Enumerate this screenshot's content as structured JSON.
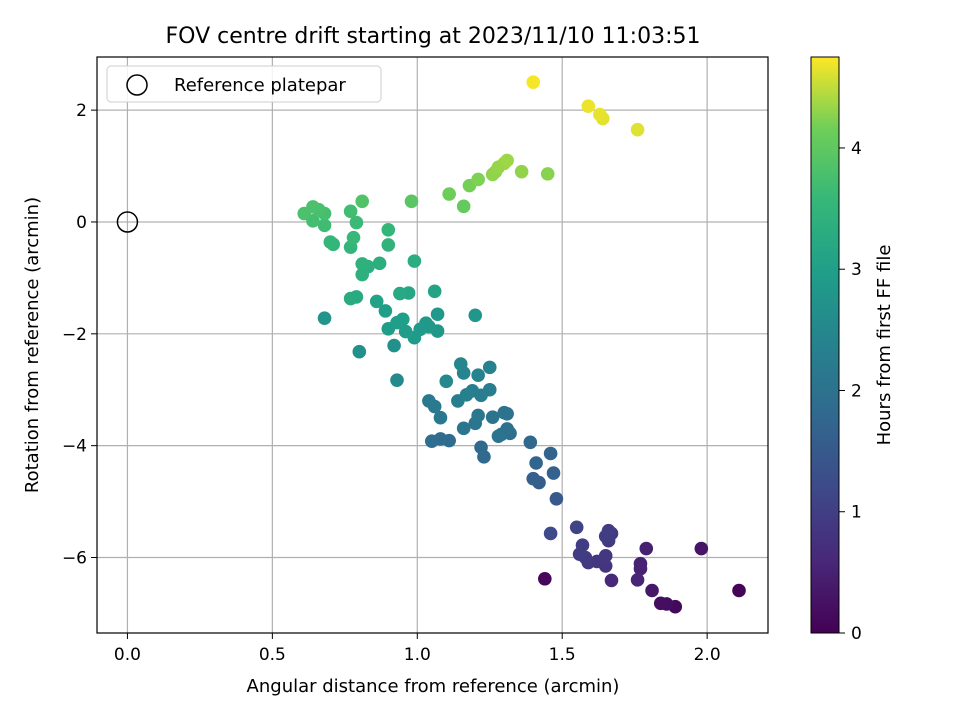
{
  "chart_data": {
    "type": "scatter",
    "title": "FOV centre drift starting at 2023/11/10 11:03:51",
    "xlabel": "Angular distance from reference (arcmin)",
    "ylabel": "Rotation from reference (arcmin)",
    "xlim": [
      -0.105,
      2.21
    ],
    "ylim": [
      -7.35,
      2.95
    ],
    "xticks": [
      0.0,
      0.5,
      1.0,
      1.5,
      2.0
    ],
    "xtick_labels": [
      "0.0",
      "0.5",
      "1.0",
      "1.5",
      "2.0"
    ],
    "yticks": [
      -6,
      -4,
      -2,
      0,
      2
    ],
    "ytick_labels": [
      "−6",
      "−4",
      "−2",
      "0",
      "2"
    ],
    "grid": true,
    "legend": {
      "position": "top-left",
      "label": "Reference platepar"
    },
    "reference_point": {
      "x": 0.0,
      "y": 0.0
    },
    "colorbar": {
      "label": "Hours from first FF file",
      "colormap": "viridis",
      "range": [
        0,
        4.75
      ],
      "ticks": [
        0,
        1,
        2,
        3,
        4
      ],
      "tick_labels": [
        "0",
        "1",
        "2",
        "3",
        "4"
      ]
    },
    "points": [
      {
        "x": 1.4,
        "y": 2.5,
        "hours": 4.72
      },
      {
        "x": 1.59,
        "y": 2.07,
        "hours": 4.68
      },
      {
        "x": 1.63,
        "y": 1.92,
        "hours": 4.66
      },
      {
        "x": 1.64,
        "y": 1.85,
        "hours": 4.64
      },
      {
        "x": 1.76,
        "y": 1.65,
        "hours": 4.62
      },
      {
        "x": 1.31,
        "y": 1.1,
        "hours": 4.35
      },
      {
        "x": 1.3,
        "y": 1.05,
        "hours": 4.33
      },
      {
        "x": 1.28,
        "y": 0.98,
        "hours": 4.32
      },
      {
        "x": 1.27,
        "y": 0.9,
        "hours": 4.3
      },
      {
        "x": 1.26,
        "y": 0.85,
        "hours": 4.29
      },
      {
        "x": 1.36,
        "y": 0.9,
        "hours": 4.3
      },
      {
        "x": 1.45,
        "y": 0.86,
        "hours": 4.26
      },
      {
        "x": 1.21,
        "y": 0.76,
        "hours": 4.22
      },
      {
        "x": 1.18,
        "y": 0.65,
        "hours": 4.18
      },
      {
        "x": 1.11,
        "y": 0.5,
        "hours": 4.14
      },
      {
        "x": 1.16,
        "y": 0.28,
        "hours": 4.05
      },
      {
        "x": 0.98,
        "y": 0.37,
        "hours": 3.95
      },
      {
        "x": 0.81,
        "y": 0.37,
        "hours": 3.85
      },
      {
        "x": 0.61,
        "y": 0.15,
        "hours": 3.8
      },
      {
        "x": 0.64,
        "y": 0.27,
        "hours": 3.8
      },
      {
        "x": 0.66,
        "y": 0.22,
        "hours": 3.78
      },
      {
        "x": 0.68,
        "y": 0.15,
        "hours": 3.75
      },
      {
        "x": 0.64,
        "y": 0.02,
        "hours": 3.72
      },
      {
        "x": 0.68,
        "y": -0.06,
        "hours": 3.68
      },
      {
        "x": 0.77,
        "y": 0.19,
        "hours": 3.7
      },
      {
        "x": 0.79,
        "y": -0.01,
        "hours": 3.62
      },
      {
        "x": 0.78,
        "y": -0.28,
        "hours": 3.58
      },
      {
        "x": 0.7,
        "y": -0.36,
        "hours": 3.55
      },
      {
        "x": 0.71,
        "y": -0.4,
        "hours": 3.52
      },
      {
        "x": 0.77,
        "y": -0.45,
        "hours": 3.5
      },
      {
        "x": 0.9,
        "y": -0.14,
        "hours": 3.55
      },
      {
        "x": 0.9,
        "y": -0.41,
        "hours": 3.45
      },
      {
        "x": 0.81,
        "y": -0.75,
        "hours": 3.4
      },
      {
        "x": 0.81,
        "y": -0.94,
        "hours": 3.38
      },
      {
        "x": 0.83,
        "y": -0.8,
        "hours": 3.36
      },
      {
        "x": 0.87,
        "y": -0.74,
        "hours": 3.35
      },
      {
        "x": 0.99,
        "y": -0.7,
        "hours": 3.32
      },
      {
        "x": 0.77,
        "y": -1.37,
        "hours": 3.25
      },
      {
        "x": 0.79,
        "y": -1.34,
        "hours": 3.22
      },
      {
        "x": 0.94,
        "y": -1.28,
        "hours": 3.2
      },
      {
        "x": 0.97,
        "y": -1.27,
        "hours": 3.15
      },
      {
        "x": 1.06,
        "y": -1.24,
        "hours": 3.12
      },
      {
        "x": 0.86,
        "y": -1.42,
        "hours": 3.08
      },
      {
        "x": 0.89,
        "y": -1.59,
        "hours": 3.0
      },
      {
        "x": 0.93,
        "y": -1.8,
        "hours": 2.98
      },
      {
        "x": 0.95,
        "y": -1.74,
        "hours": 2.96
      },
      {
        "x": 0.9,
        "y": -1.91,
        "hours": 2.94
      },
      {
        "x": 0.96,
        "y": -1.96,
        "hours": 2.92
      },
      {
        "x": 0.99,
        "y": -2.07,
        "hours": 2.9
      },
      {
        "x": 1.01,
        "y": -1.92,
        "hours": 2.88
      },
      {
        "x": 1.04,
        "y": -1.87,
        "hours": 2.86
      },
      {
        "x": 1.03,
        "y": -1.81,
        "hours": 2.85
      },
      {
        "x": 1.07,
        "y": -1.65,
        "hours": 2.84
      },
      {
        "x": 1.07,
        "y": -1.95,
        "hours": 2.82
      },
      {
        "x": 1.2,
        "y": -1.67,
        "hours": 2.8
      },
      {
        "x": 0.68,
        "y": -1.72,
        "hours": 2.78
      },
      {
        "x": 0.8,
        "y": -2.32,
        "hours": 2.7
      },
      {
        "x": 0.92,
        "y": -2.21,
        "hours": 2.68
      },
      {
        "x": 0.93,
        "y": -2.83,
        "hours": 2.55
      },
      {
        "x": 1.1,
        "y": -2.85,
        "hours": 2.5
      },
      {
        "x": 1.15,
        "y": -2.54,
        "hours": 2.45
      },
      {
        "x": 1.16,
        "y": -2.7,
        "hours": 2.42
      },
      {
        "x": 1.21,
        "y": -2.74,
        "hours": 2.4
      },
      {
        "x": 1.25,
        "y": -2.6,
        "hours": 2.38
      },
      {
        "x": 1.17,
        "y": -3.09,
        "hours": 2.32
      },
      {
        "x": 1.14,
        "y": -3.2,
        "hours": 2.3
      },
      {
        "x": 1.19,
        "y": -3.02,
        "hours": 2.28
      },
      {
        "x": 1.22,
        "y": -3.1,
        "hours": 2.26
      },
      {
        "x": 1.25,
        "y": -3.0,
        "hours": 2.25
      },
      {
        "x": 1.04,
        "y": -3.2,
        "hours": 2.2
      },
      {
        "x": 1.06,
        "y": -3.3,
        "hours": 2.18
      },
      {
        "x": 1.08,
        "y": -3.5,
        "hours": 2.15
      },
      {
        "x": 1.21,
        "y": -3.46,
        "hours": 2.12
      },
      {
        "x": 1.2,
        "y": -3.6,
        "hours": 2.1
      },
      {
        "x": 1.16,
        "y": -3.69,
        "hours": 2.08
      },
      {
        "x": 1.26,
        "y": -3.49,
        "hours": 2.06
      },
      {
        "x": 1.3,
        "y": -3.41,
        "hours": 2.04
      },
      {
        "x": 1.31,
        "y": -3.43,
        "hours": 2.02
      },
      {
        "x": 1.28,
        "y": -3.83,
        "hours": 2.0
      },
      {
        "x": 1.29,
        "y": -3.8,
        "hours": 1.98
      },
      {
        "x": 1.31,
        "y": -3.7,
        "hours": 1.96
      },
      {
        "x": 1.32,
        "y": -3.78,
        "hours": 1.94
      },
      {
        "x": 1.05,
        "y": -3.92,
        "hours": 1.92
      },
      {
        "x": 1.08,
        "y": -3.88,
        "hours": 1.9
      },
      {
        "x": 1.11,
        "y": -3.91,
        "hours": 1.88
      },
      {
        "x": 1.22,
        "y": -4.03,
        "hours": 1.85
      },
      {
        "x": 1.23,
        "y": -4.2,
        "hours": 1.82
      },
      {
        "x": 1.39,
        "y": -3.94,
        "hours": 1.78
      },
      {
        "x": 1.41,
        "y": -4.31,
        "hours": 1.72
      },
      {
        "x": 1.46,
        "y": -4.14,
        "hours": 1.7
      },
      {
        "x": 1.47,
        "y": -4.49,
        "hours": 1.65
      },
      {
        "x": 1.4,
        "y": -4.59,
        "hours": 1.62
      },
      {
        "x": 1.42,
        "y": -4.66,
        "hours": 1.58
      },
      {
        "x": 1.48,
        "y": -4.95,
        "hours": 1.5
      },
      {
        "x": 1.46,
        "y": -5.57,
        "hours": 1.2
      },
      {
        "x": 1.55,
        "y": -5.46,
        "hours": 1.1
      },
      {
        "x": 1.56,
        "y": -5.94,
        "hours": 0.98
      },
      {
        "x": 1.57,
        "y": -5.78,
        "hours": 0.95
      },
      {
        "x": 1.58,
        "y": -6.0,
        "hours": 0.92
      },
      {
        "x": 1.59,
        "y": -6.09,
        "hours": 0.9
      },
      {
        "x": 1.62,
        "y": -6.07,
        "hours": 0.88
      },
      {
        "x": 1.65,
        "y": -5.62,
        "hours": 0.95
      },
      {
        "x": 1.66,
        "y": -5.7,
        "hours": 0.92
      },
      {
        "x": 1.66,
        "y": -5.52,
        "hours": 0.96
      },
      {
        "x": 1.67,
        "y": -5.57,
        "hours": 0.9
      },
      {
        "x": 1.65,
        "y": -5.97,
        "hours": 0.85
      },
      {
        "x": 1.65,
        "y": -6.15,
        "hours": 0.82
      },
      {
        "x": 1.67,
        "y": -6.41,
        "hours": 0.6
      },
      {
        "x": 1.76,
        "y": -6.4,
        "hours": 0.55
      },
      {
        "x": 1.77,
        "y": -6.2,
        "hours": 0.52
      },
      {
        "x": 1.77,
        "y": -6.11,
        "hours": 0.5
      },
      {
        "x": 1.79,
        "y": -5.84,
        "hours": 0.48
      },
      {
        "x": 1.81,
        "y": -6.59,
        "hours": 0.35
      },
      {
        "x": 1.84,
        "y": -6.82,
        "hours": 0.2
      },
      {
        "x": 1.86,
        "y": -6.83,
        "hours": 0.18
      },
      {
        "x": 1.89,
        "y": -6.88,
        "hours": 0.12
      },
      {
        "x": 1.98,
        "y": -5.84,
        "hours": 0.3
      },
      {
        "x": 2.11,
        "y": -6.59,
        "hours": 0.05
      },
      {
        "x": 1.44,
        "y": -6.38,
        "hours": 0.1
      }
    ]
  }
}
